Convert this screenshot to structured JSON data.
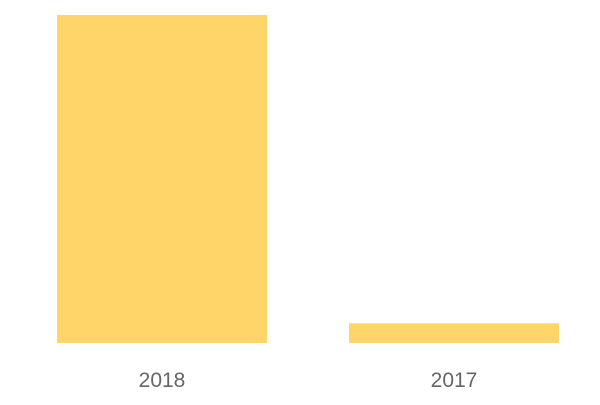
{
  "chart_data": {
    "type": "bar",
    "categories": [
      "2018",
      "2017"
    ],
    "values": [
      100,
      6
    ],
    "title": "",
    "xlabel": "",
    "ylabel": "",
    "ylim": [
      0,
      100
    ],
    "grid": false,
    "bar_color": "#FFD569",
    "label_color": "#666666"
  }
}
